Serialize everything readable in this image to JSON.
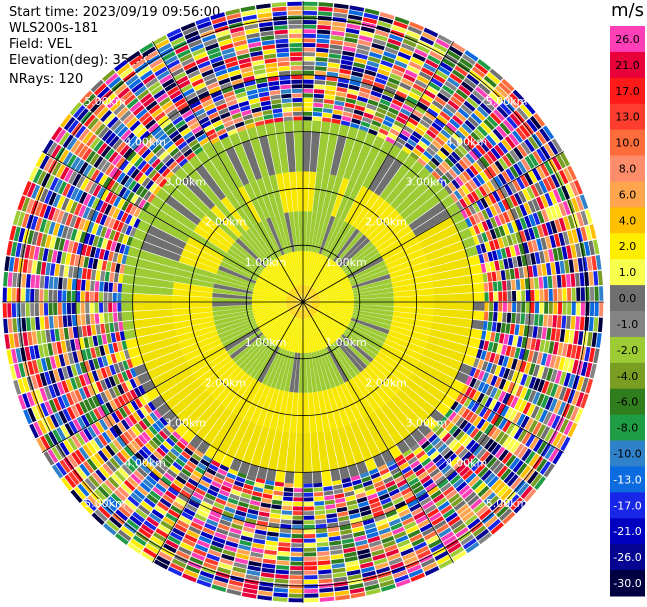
{
  "info": {
    "start_time": "Start time: 2023/09/19 09:56:00",
    "instrument": "WLS200s-181",
    "field": "Field: VEL",
    "elevation": "Elevation(deg): 35.30",
    "nrays": "NRays: 120"
  },
  "chart_data": {
    "type": "ppi_polar_scan",
    "field": "VEL",
    "unit": "m/s",
    "n_rays": 120,
    "elevation_deg": 35.3,
    "range_ring_labels": [
      "1.00km",
      "2.00km",
      "3.00km",
      "4.00km",
      "5.00km"
    ],
    "spoke_angles_deg": [
      0,
      30,
      60,
      90,
      120,
      150,
      180,
      210,
      240,
      270,
      300,
      330
    ],
    "colorbar": {
      "ticks": [
        "26.0",
        "21.0",
        "17.0",
        "13.0",
        "10.0",
        "8.0",
        "6.0",
        "4.0",
        "2.0",
        "1.0",
        "0.0",
        "-1.0",
        "-2.0",
        "-4.0",
        "-6.0",
        "-8.0",
        "-10.0",
        "-13.0",
        "-17.0",
        "-21.0",
        "-26.0",
        "-30.0"
      ],
      "colors": [
        "#ff3fb8",
        "#e8003a",
        "#ff1a1a",
        "#ff3d2e",
        "#ff6c3c",
        "#ff8c6a",
        "#ffa54d",
        "#ffc000",
        "#ffee00",
        "#f9ff4d",
        "#707070",
        "#848484",
        "#9ccb34",
        "#7a9e22",
        "#2f7d1c",
        "#1f9c46",
        "#2f82c9",
        "#0d6be0",
        "#1826e8",
        "#0000c0",
        "#050592",
        "#000040"
      ]
    },
    "structure": {
      "inner_rings_km": [
        {
          "range_km": [
            0,
            0.3
          ],
          "color": "#ffd400"
        },
        {
          "range_km": [
            0.3,
            0.9
          ],
          "color": "#f8f000"
        },
        {
          "range_km": [
            0.9,
            1.6
          ],
          "color": "#9ccb34"
        },
        {
          "range_km": [
            1.6,
            2.3
          ],
          "color": "#f8e800"
        },
        {
          "range_km": [
            2.3,
            3.0
          ],
          "color": "#f0e000"
        }
      ],
      "noise_start_km": 3.2,
      "max_range_km": 5.3
    }
  }
}
